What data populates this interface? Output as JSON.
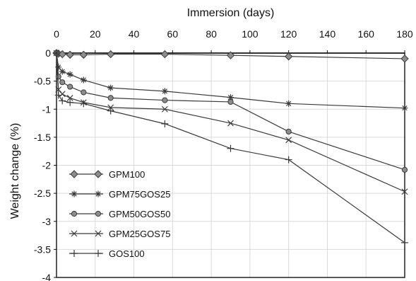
{
  "chart_data": {
    "type": "line",
    "xlabel": "Immersion (days)",
    "ylabel": "Weight change (%)",
    "xlim": [
      0,
      180
    ],
    "ylim": [
      -4,
      0
    ],
    "x_ticks": [
      0,
      20,
      40,
      60,
      80,
      100,
      120,
      140,
      160,
      180
    ],
    "y_ticks": [
      0,
      -0.5,
      -1,
      -1.5,
      -2,
      -2.5,
      -3,
      -3.5,
      -4
    ],
    "x_tick_labels": [
      "0",
      "20",
      "40",
      "60",
      "80",
      "100",
      "120",
      "140",
      "160",
      "180"
    ],
    "y_tick_labels": [
      "0",
      "-0.5",
      "-1",
      "-1.5",
      "-2",
      "-2.5",
      "-3",
      "-3.5",
      "-4"
    ],
    "x_axis_position": "top",
    "grid": true,
    "legend_position": "bottom-left",
    "series": [
      {
        "name": "GPM100",
        "marker": "diamond",
        "x": [
          0,
          1,
          3,
          7,
          14,
          28,
          56,
          90,
          120,
          180
        ],
        "y": [
          0,
          -0.01,
          -0.02,
          -0.03,
          -0.03,
          -0.02,
          -0.02,
          -0.04,
          -0.06,
          -0.1
        ]
      },
      {
        "name": "GPM75GOS25",
        "marker": "asterisk",
        "x": [
          0,
          1,
          3,
          7,
          14,
          28,
          56,
          90,
          120,
          180
        ],
        "y": [
          0,
          -0.25,
          -0.33,
          -0.38,
          -0.48,
          -0.62,
          -0.68,
          -0.79,
          -0.9,
          -0.98
        ]
      },
      {
        "name": "GPM50GOS50",
        "marker": "circle",
        "x": [
          0,
          1,
          3,
          7,
          14,
          28,
          56,
          90,
          120,
          180
        ],
        "y": [
          0,
          -0.42,
          -0.52,
          -0.6,
          -0.7,
          -0.8,
          -0.84,
          -0.87,
          -1.4,
          -2.08
        ]
      },
      {
        "name": "GPM25GOS75",
        "marker": "x",
        "x": [
          0,
          1,
          3,
          7,
          14,
          28,
          56,
          90,
          120,
          180
        ],
        "y": [
          0,
          -0.65,
          -0.73,
          -0.8,
          -0.88,
          -0.97,
          -1.0,
          -1.25,
          -1.55,
          -2.47
        ]
      },
      {
        "name": "GOS100",
        "marker": "plus",
        "x": [
          0,
          1,
          3,
          7,
          14,
          28,
          56,
          90,
          120,
          180
        ],
        "y": [
          0,
          -0.75,
          -0.85,
          -0.88,
          -0.9,
          -1.03,
          -1.26,
          -1.7,
          -1.9,
          -3.38
        ]
      }
    ]
  }
}
